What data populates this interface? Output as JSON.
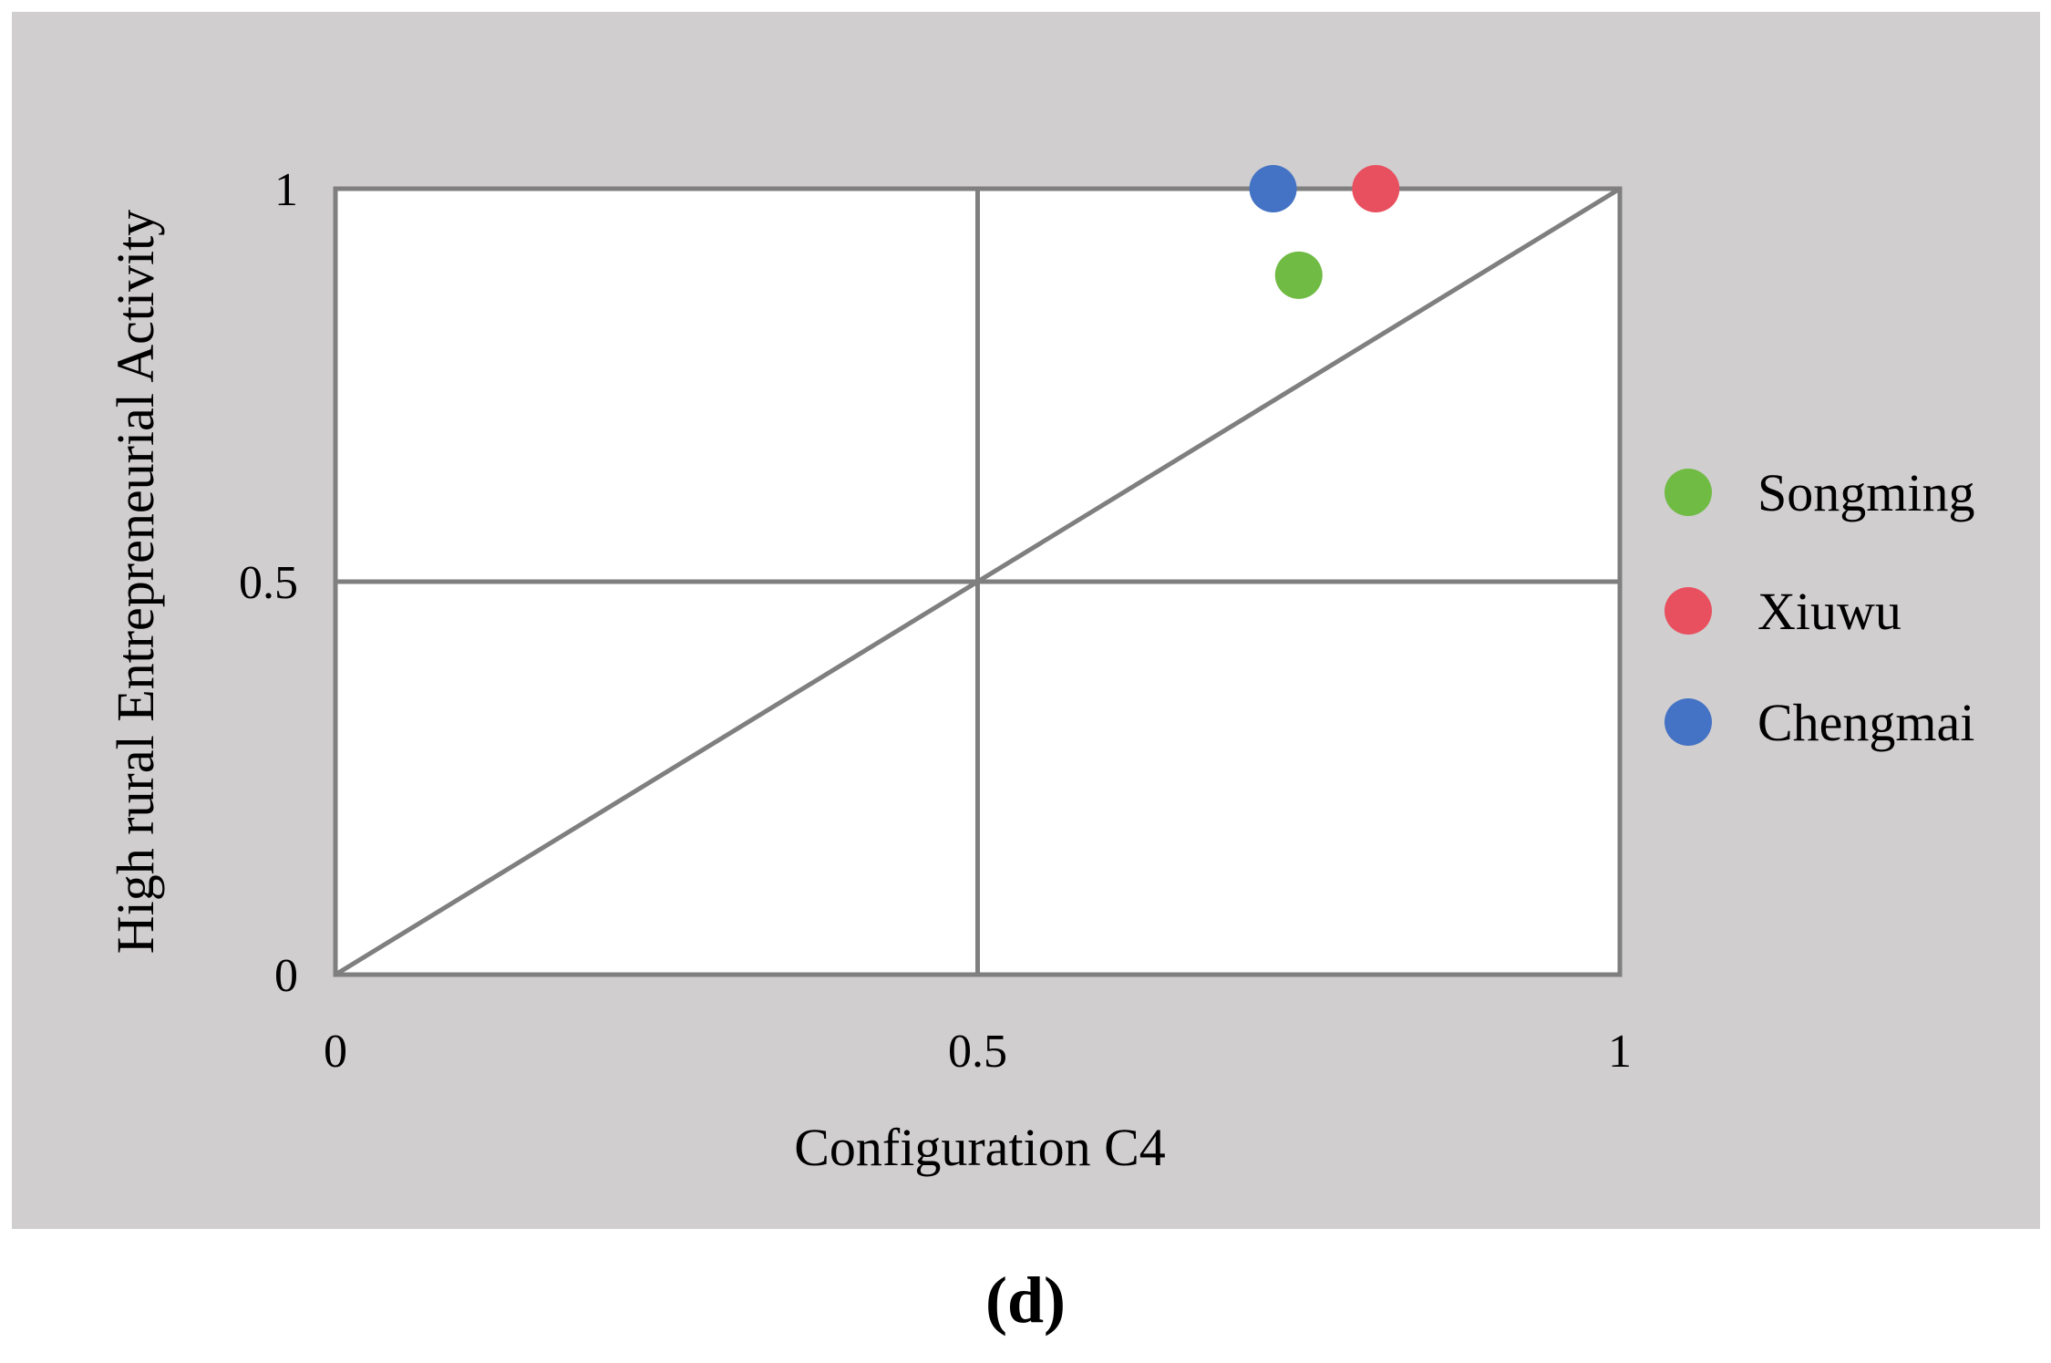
{
  "chart_data": {
    "type": "scatter",
    "xlabel": "Configuration C4",
    "ylabel": "High rural Entrepreneurial Activity",
    "xlim": [
      0,
      1
    ],
    "ylim": [
      0,
      1
    ],
    "x_ticks": [
      "0",
      "0.5",
      "1"
    ],
    "y_ticks": [
      "0",
      "0.5",
      "1"
    ],
    "grid": true,
    "diagonal_reference_line": true,
    "legend_position": "right",
    "series": [
      {
        "name": "Songming",
        "color": "#70bb44",
        "points": [
          {
            "x": 0.75,
            "y": 0.89
          }
        ]
      },
      {
        "name": "Xiuwu",
        "color": "#e8505f",
        "points": [
          {
            "x": 0.81,
            "y": 1.0
          }
        ]
      },
      {
        "name": "Chengmai",
        "color": "#4472c4",
        "points": [
          {
            "x": 0.73,
            "y": 1.0
          }
        ]
      }
    ]
  },
  "style": {
    "outer_background": "#d0cecf",
    "plot_background": "#ffffff",
    "axis_color": "#7f7f7f"
  },
  "panel_label": "(d)"
}
